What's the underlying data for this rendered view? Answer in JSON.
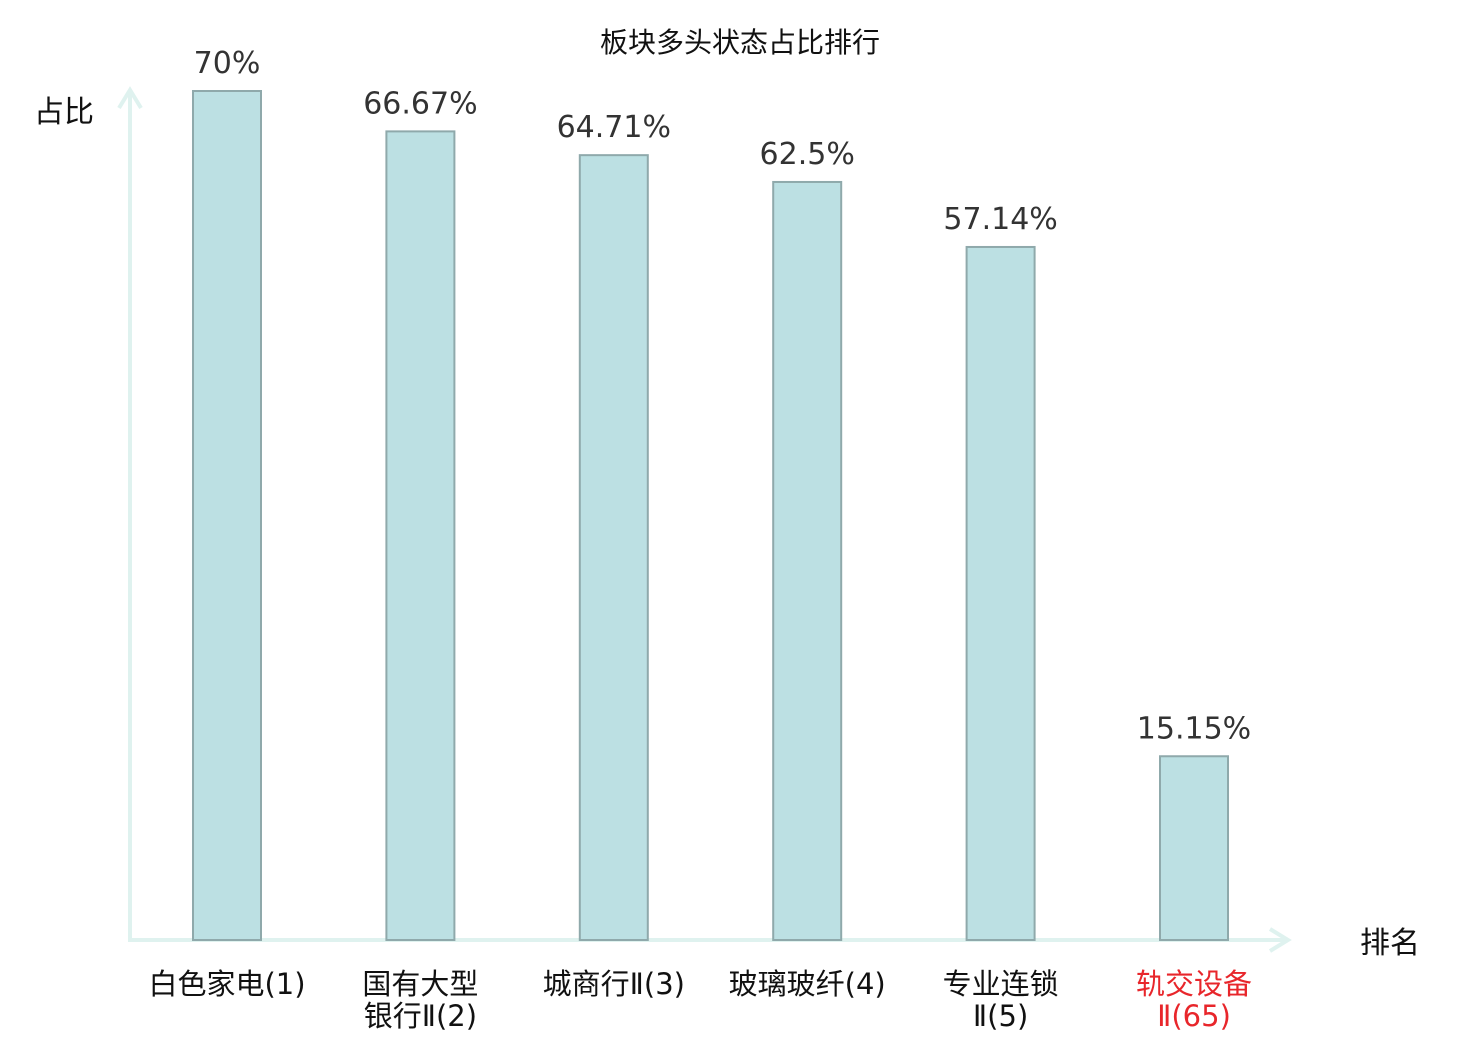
{
  "chart_data": {
    "type": "bar",
    "title": "板块多头状态占比排行",
    "ylabel": "占比",
    "xlabel": "排名",
    "ylim": [
      0,
      70
    ],
    "grid": false,
    "legend": "none",
    "categories": [
      {
        "lines": [
          "白色家电(1)"
        ],
        "highlight": false
      },
      {
        "lines": [
          "国有大型",
          "银行Ⅱ(2)"
        ],
        "highlight": false
      },
      {
        "lines": [
          "城商行Ⅱ(3)"
        ],
        "highlight": false
      },
      {
        "lines": [
          "玻璃玻纤(4)"
        ],
        "highlight": false
      },
      {
        "lines": [
          "专业连锁",
          "Ⅱ(5)"
        ],
        "highlight": false
      },
      {
        "lines": [
          "轨交设备",
          "Ⅱ(65)"
        ],
        "highlight": true
      }
    ],
    "values": [
      70,
      66.67,
      64.71,
      62.5,
      57.14,
      15.15
    ],
    "value_labels": [
      "70%",
      "66.67%",
      "64.71%",
      "62.5%",
      "57.14%",
      "15.15%"
    ],
    "colors": {
      "bar_fill": "#bce0e3",
      "bar_stroke": "#8fa9ab",
      "axis": "#dff2ef",
      "highlight_text": "#e8262b",
      "text": "#111111"
    }
  }
}
